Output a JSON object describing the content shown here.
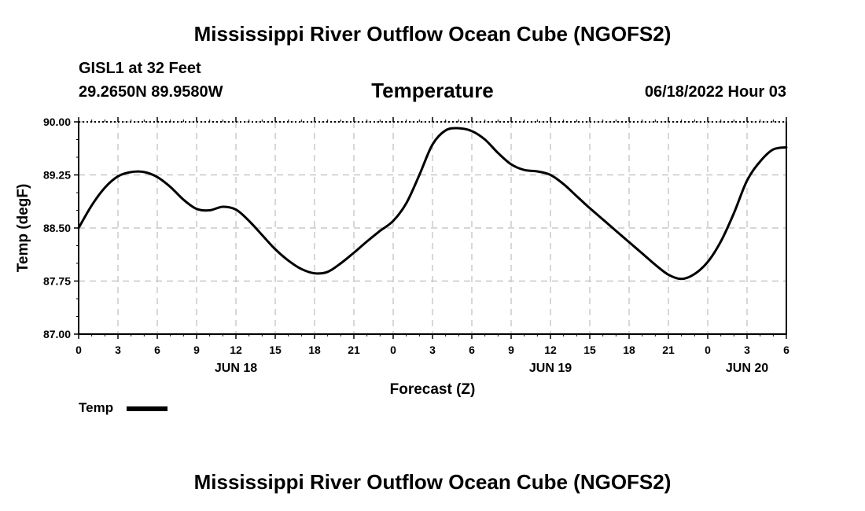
{
  "header": {
    "title": "Mississippi River Outflow Ocean Cube (NGOFS2)",
    "station": "GISL1 at 32 Feet",
    "coordinates": "29.2650N  89.9580W",
    "subtitle": "Temperature",
    "datetime": "06/18/2022 Hour 03"
  },
  "footer": {
    "title": "Mississippi River Outflow Ocean Cube (NGOFS2)"
  },
  "legend": {
    "label": "Temp",
    "color": "#000000"
  },
  "chart_data": {
    "type": "line",
    "title": "Temperature",
    "xlabel": "Forecast (Z)",
    "ylabel": "Temp (degF)",
    "ylim": [
      87.0,
      90.0
    ],
    "yticks": [
      "87.00",
      "87.75",
      "88.50",
      "89.25",
      "90.00"
    ],
    "xlim_hours": [
      0,
      54
    ],
    "xtick_labels": [
      "0",
      "3",
      "6",
      "9",
      "12",
      "15",
      "18",
      "21",
      "0",
      "3",
      "6",
      "9",
      "12",
      "15",
      "18",
      "21",
      "0",
      "3",
      "6"
    ],
    "date_labels": [
      {
        "hour": 12,
        "label": "JUN 18"
      },
      {
        "hour": 36,
        "label": "JUN 19"
      },
      {
        "hour": 51,
        "label": "JUN 20"
      }
    ],
    "grid": true,
    "series": [
      {
        "name": "Temp",
        "color": "#000000",
        "x": [
          0,
          1,
          2,
          3,
          4,
          5,
          6,
          7,
          8,
          9,
          10,
          11,
          12,
          13,
          14,
          15,
          16,
          17,
          18,
          19,
          20,
          21,
          22,
          23,
          24,
          25,
          26,
          27,
          28,
          29,
          30,
          31,
          32,
          33,
          34,
          35,
          36,
          37,
          38,
          39,
          40,
          41,
          42,
          43,
          44,
          45,
          46,
          47,
          48,
          49,
          50,
          51,
          52,
          53,
          54
        ],
        "values": [
          88.5,
          88.82,
          89.07,
          89.23,
          89.29,
          89.29,
          89.22,
          89.08,
          88.9,
          88.77,
          88.75,
          88.8,
          88.76,
          88.6,
          88.4,
          88.2,
          88.04,
          87.92,
          87.86,
          87.88,
          88.0,
          88.15,
          88.31,
          88.46,
          88.6,
          88.85,
          89.25,
          89.68,
          89.88,
          89.91,
          89.87,
          89.75,
          89.56,
          89.4,
          89.32,
          89.3,
          89.25,
          89.12,
          88.95,
          88.78,
          88.62,
          88.46,
          88.3,
          88.14,
          87.98,
          87.84,
          87.78,
          87.85,
          88.02,
          88.31,
          88.71,
          89.17,
          89.44,
          89.61,
          89.64
        ]
      }
    ]
  }
}
